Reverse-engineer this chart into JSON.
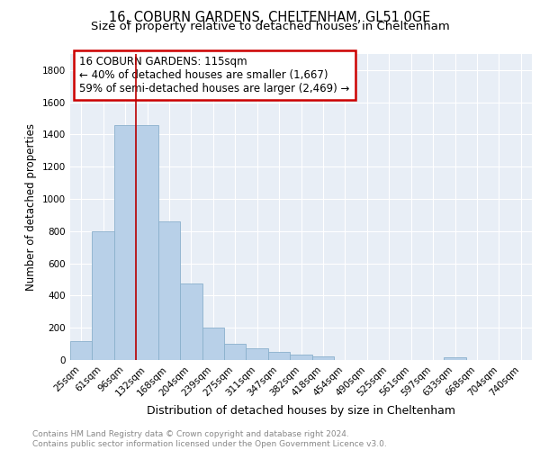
{
  "title": "16, COBURN GARDENS, CHELTENHAM, GL51 0GE",
  "subtitle": "Size of property relative to detached houses in Cheltenham",
  "xlabel": "Distribution of detached houses by size in Cheltenham",
  "ylabel": "Number of detached properties",
  "categories": [
    "25sqm",
    "61sqm",
    "96sqm",
    "132sqm",
    "168sqm",
    "204sqm",
    "239sqm",
    "275sqm",
    "311sqm",
    "347sqm",
    "382sqm",
    "418sqm",
    "454sqm",
    "490sqm",
    "525sqm",
    "561sqm",
    "597sqm",
    "633sqm",
    "668sqm",
    "704sqm",
    "740sqm"
  ],
  "values": [
    115,
    800,
    1460,
    1460,
    860,
    475,
    200,
    100,
    70,
    50,
    32,
    25,
    0,
    0,
    0,
    0,
    0,
    18,
    0,
    0,
    0
  ],
  "bar_color": "#b8d0e8",
  "bar_edge_color": "#8ab0cc",
  "vline_position": 2.5,
  "vline_color": "#bb0000",
  "annotation_line1": "16 COBURN GARDENS: 115sqm",
  "annotation_line2": "← 40% of detached houses are smaller (1,667)",
  "annotation_line3": "59% of semi-detached houses are larger (2,469) →",
  "annotation_box_facecolor": "#ffffff",
  "annotation_box_edgecolor": "#cc0000",
  "ylim": [
    0,
    1900
  ],
  "yticks": [
    0,
    200,
    400,
    600,
    800,
    1000,
    1200,
    1400,
    1600,
    1800
  ],
  "plot_bg_color": "#e8eef6",
  "grid_color": "#ffffff",
  "footer_text": "Contains HM Land Registry data © Crown copyright and database right 2024.\nContains public sector information licensed under the Open Government Licence v3.0.",
  "title_fontsize": 10.5,
  "subtitle_fontsize": 9.5,
  "ylabel_fontsize": 8.5,
  "xlabel_fontsize": 9,
  "tick_fontsize": 7.5,
  "annotation_fontsize": 8.5,
  "footer_fontsize": 6.5
}
